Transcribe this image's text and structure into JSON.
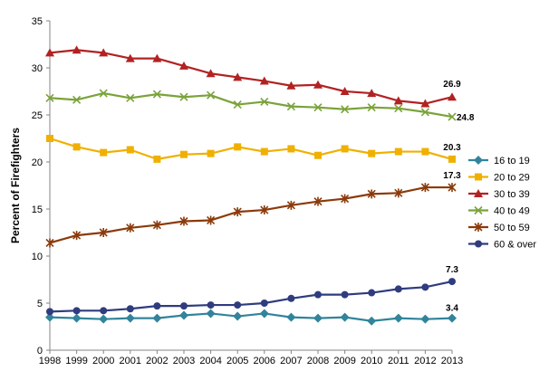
{
  "chart_data": {
    "type": "line",
    "title": "",
    "xlabel": "",
    "ylabel": "Percent of Firefighters",
    "ylim": [
      0,
      35
    ],
    "yticks": [
      0,
      5,
      10,
      15,
      20,
      25,
      30,
      35
    ],
    "grid": false,
    "legend_position": "right",
    "x": [
      "1998",
      "1999",
      "2000",
      "2001",
      "2002",
      "2003",
      "2004",
      "2005",
      "2006",
      "2007",
      "2008",
      "2009",
      "2010",
      "2011",
      "2012",
      "2013"
    ],
    "series": [
      {
        "name": "16 to 19",
        "color": "#31849b",
        "marker": "diamond",
        "values": [
          3.5,
          3.4,
          3.3,
          3.4,
          3.4,
          3.7,
          3.9,
          3.6,
          3.9,
          3.5,
          3.4,
          3.5,
          3.1,
          3.4,
          3.3,
          3.4
        ],
        "end_label": "3.4"
      },
      {
        "name": "20 to 29",
        "color": "#f0b000",
        "marker": "square",
        "values": [
          22.5,
          21.6,
          21.0,
          21.3,
          20.3,
          20.8,
          20.9,
          21.6,
          21.1,
          21.4,
          20.7,
          21.4,
          20.9,
          21.1,
          21.1,
          20.3
        ],
        "end_label": "20.3"
      },
      {
        "name": "30 to 39",
        "color": "#b22222",
        "marker": "triangle",
        "values": [
          31.6,
          31.9,
          31.6,
          31.0,
          31.0,
          30.2,
          29.4,
          29.0,
          28.6,
          28.1,
          28.2,
          27.5,
          27.3,
          26.5,
          26.2,
          26.9
        ],
        "end_label": "26.9"
      },
      {
        "name": "40 to 49",
        "color": "#7aa33a",
        "marker": "x",
        "values": [
          26.8,
          26.6,
          27.3,
          26.8,
          27.2,
          26.9,
          27.1,
          26.1,
          26.4,
          25.9,
          25.8,
          25.6,
          25.8,
          25.7,
          25.3,
          24.8
        ],
        "end_label": "24.8"
      },
      {
        "name": "50 to 59",
        "color": "#8b3a0a",
        "marker": "star",
        "values": [
          11.4,
          12.2,
          12.5,
          13.0,
          13.3,
          13.7,
          13.8,
          14.7,
          14.9,
          15.4,
          15.8,
          16.1,
          16.6,
          16.7,
          17.3,
          17.3
        ],
        "end_label": "17.3"
      },
      {
        "name": "60 & over",
        "color": "#2f3c7e",
        "marker": "circle",
        "values": [
          4.1,
          4.2,
          4.2,
          4.4,
          4.7,
          4.7,
          4.8,
          4.8,
          5.0,
          5.5,
          5.9,
          5.9,
          6.1,
          6.5,
          6.7,
          7.3
        ],
        "end_label": "7.3"
      }
    ]
  }
}
